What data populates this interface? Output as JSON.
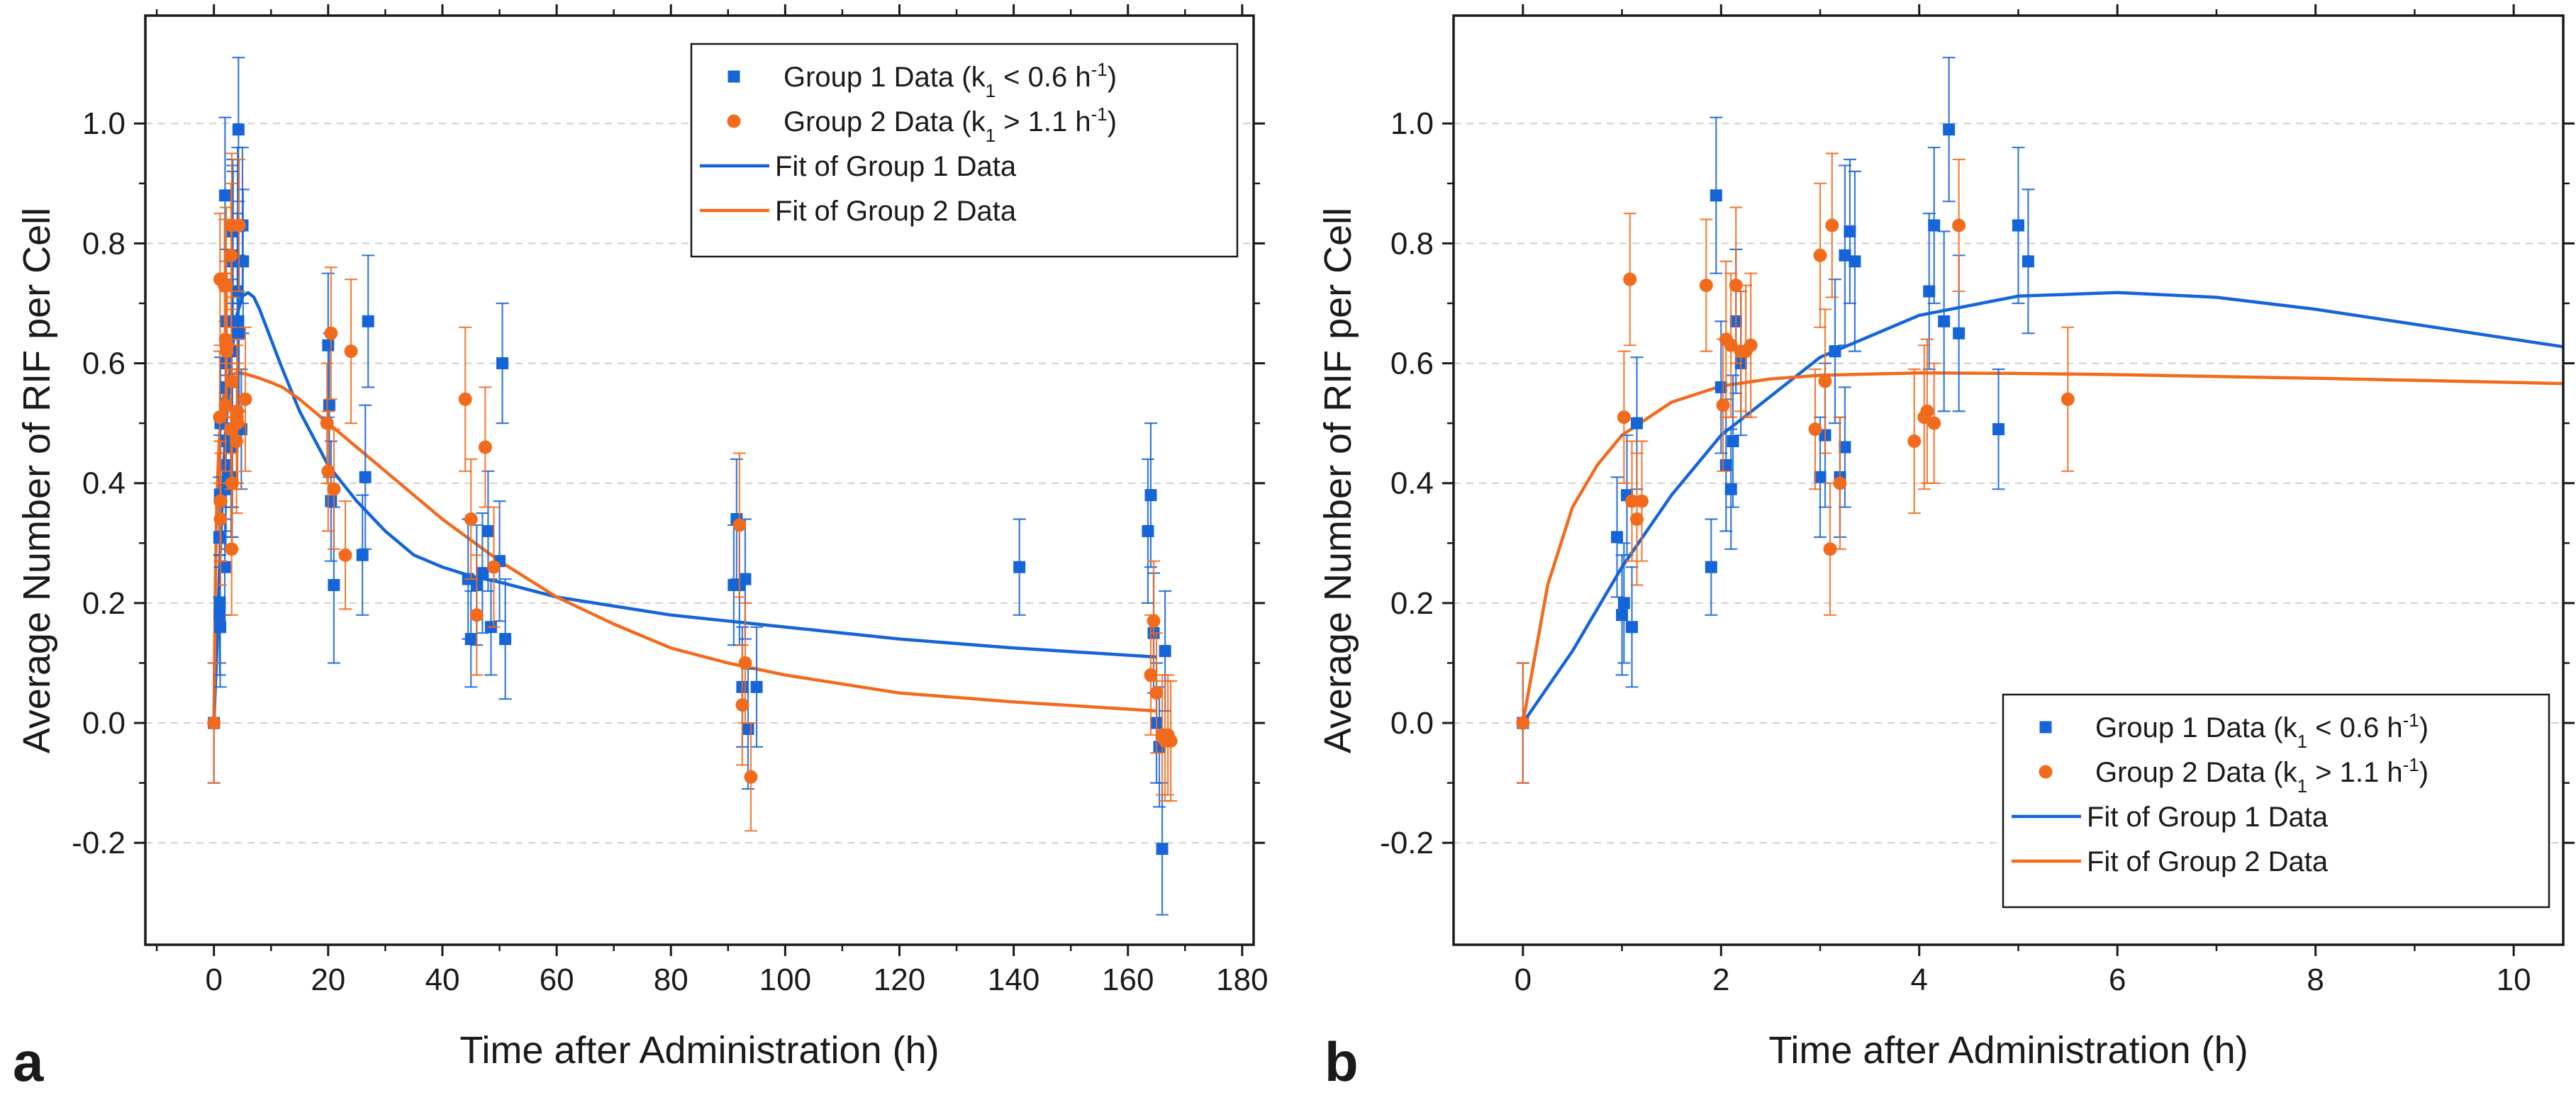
{
  "colors": {
    "group1": "#1565d8",
    "group2": "#f26b1d",
    "frame": "#1a1a1a",
    "grid": "#cfcfcf"
  },
  "chart_data": [
    {
      "type": "scatter",
      "panel_label": "a",
      "xlabel": "Time after Administration (h)",
      "ylabel": "Average Number of RIF per Cell",
      "xlim": [
        -12,
        182
      ],
      "ylim": [
        -0.37,
        1.18
      ],
      "xticks": [
        0,
        20,
        40,
        60,
        80,
        100,
        120,
        140,
        160,
        180
      ],
      "yticks": [
        -0.2,
        0.0,
        0.2,
        0.4,
        0.6,
        0.8,
        1.0
      ],
      "xtick_labels": [
        "0",
        "20",
        "40",
        "60",
        "80",
        "100",
        "120",
        "140",
        "160",
        "180"
      ],
      "ytick_labels": [
        "-0.2",
        "0.0",
        "0.2",
        "0.4",
        "0.6",
        "0.8",
        "1.0"
      ],
      "grid": "horizontal dashed",
      "legend_position": "top-right",
      "legend": [
        {
          "label": "Group 1 Data (k",
          "sub": "1",
          "rest": " < 0.6 h",
          "sup": "-1",
          "end": ")",
          "kind": "square",
          "series": "group1"
        },
        {
          "label": "Group 2 Data (k",
          "sub": "1",
          "rest": " > 1.1 h",
          "sup": "-1",
          "end": ")",
          "kind": "circle",
          "series": "group2"
        },
        {
          "label": "Fit of Group 1 Data",
          "kind": "line",
          "series": "group1"
        },
        {
          "label": "Fit of Group 2 Data",
          "kind": "line",
          "series": "group2"
        }
      ],
      "series": [
        {
          "name": "Group 1 Data (k1 < 0.6 h-1)",
          "marker": "square",
          "color_key": "group1",
          "points": [
            [
              0,
              0.0,
              0.1
            ],
            [
              0.95,
              0.31,
              0.1
            ],
            [
              1.0,
              0.18,
              0.1
            ],
            [
              1.02,
              0.2,
              0.1
            ],
            [
              1.05,
              0.38,
              0.1
            ],
            [
              1.1,
              0.16,
              0.1
            ],
            [
              1.15,
              0.5,
              0.11
            ],
            [
              1.9,
              0.26,
              0.08
            ],
            [
              1.95,
              0.88,
              0.13
            ],
            [
              2.0,
              0.56,
              0.11
            ],
            [
              2.05,
              0.43,
              0.11
            ],
            [
              2.1,
              0.39,
              0.1
            ],
            [
              2.12,
              0.47,
              0.11
            ],
            [
              2.15,
              0.67,
              0.12
            ],
            [
              2.2,
              0.6,
              0.12
            ],
            [
              3.0,
              0.41,
              0.1
            ],
            [
              3.05,
              0.48,
              0.12
            ],
            [
              3.15,
              0.62,
              0.12
            ],
            [
              3.2,
              0.41,
              0.1
            ],
            [
              3.25,
              0.46,
              0.1
            ],
            [
              3.25,
              0.78,
              0.15
            ],
            [
              3.3,
              0.82,
              0.12
            ],
            [
              3.35,
              0.77,
              0.15
            ],
            [
              4.1,
              0.72,
              0.13
            ],
            [
              4.15,
              0.83,
              0.13
            ],
            [
              4.25,
              0.67,
              0.15
            ],
            [
              4.3,
              0.99,
              0.12
            ],
            [
              4.4,
              0.65,
              0.13
            ],
            [
              4.8,
              0.49,
              0.1
            ],
            [
              5.0,
              0.83,
              0.13
            ],
            [
              5.1,
              0.77,
              0.12
            ],
            [
              20.0,
              0.63,
              0.12
            ],
            [
              20.2,
              0.53,
              0.12
            ],
            [
              20.5,
              0.37,
              0.1
            ],
            [
              21.0,
              0.23,
              0.13
            ],
            [
              26.0,
              0.28,
              0.1
            ],
            [
              26.5,
              0.41,
              0.12
            ],
            [
              27.0,
              0.67,
              0.11
            ],
            [
              44.5,
              0.24,
              0.1
            ],
            [
              45.0,
              0.14,
              0.08
            ],
            [
              46.0,
              0.23,
              0.1
            ],
            [
              47.0,
              0.25,
              0.1
            ],
            [
              48.0,
              0.32,
              0.1
            ],
            [
              48.5,
              0.16,
              0.08
            ],
            [
              50.0,
              0.27,
              0.1
            ],
            [
              50.5,
              0.6,
              0.1
            ],
            [
              51.0,
              0.14,
              0.1
            ],
            [
              91.0,
              0.23,
              0.1
            ],
            [
              91.5,
              0.34,
              0.1
            ],
            [
              92.0,
              0.23,
              0.1
            ],
            [
              92.5,
              0.06,
              0.1
            ],
            [
              93.0,
              0.24,
              0.1
            ],
            [
              93.5,
              -0.01,
              0.1
            ],
            [
              95.0,
              0.06,
              0.1
            ],
            [
              141.0,
              0.26,
              0.08
            ],
            [
              163.5,
              0.32,
              0.12
            ],
            [
              164.0,
              0.38,
              0.12
            ],
            [
              164.5,
              0.15,
              0.1
            ],
            [
              165.0,
              0.0,
              0.1
            ],
            [
              165.5,
              -0.04,
              0.1
            ],
            [
              166.0,
              -0.21,
              0.11
            ],
            [
              166.5,
              0.12,
              0.1
            ]
          ]
        },
        {
          "name": "Group 2 Data (k1 > 1.1 h-1)",
          "marker": "circle",
          "color_key": "group2",
          "points": [
            [
              0,
              0.0,
              0.1
            ],
            [
              1.02,
              0.51,
              0.11
            ],
            [
              1.08,
              0.74,
              0.11
            ],
            [
              1.1,
              0.37,
              0.1
            ],
            [
              1.15,
              0.34,
              0.11
            ],
            [
              1.2,
              0.37,
              0.1
            ],
            [
              1.85,
              0.73,
              0.11
            ],
            [
              2.02,
              0.53,
              0.11
            ],
            [
              2.05,
              0.64,
              0.13
            ],
            [
              2.1,
              0.63,
              0.12
            ],
            [
              2.15,
              0.73,
              0.13
            ],
            [
              2.2,
              0.62,
              0.1
            ],
            [
              2.25,
              0.62,
              0.11
            ],
            [
              2.3,
              0.63,
              0.12
            ],
            [
              2.95,
              0.49,
              0.1
            ],
            [
              3.0,
              0.78,
              0.12
            ],
            [
              3.05,
              0.57,
              0.12
            ],
            [
              3.1,
              0.29,
              0.11
            ],
            [
              3.12,
              0.83,
              0.12
            ],
            [
              3.2,
              0.4,
              0.11
            ],
            [
              3.95,
              0.47,
              0.12
            ],
            [
              4.05,
              0.51,
              0.12
            ],
            [
              4.08,
              0.52,
              0.12
            ],
            [
              4.15,
              0.5,
              0.1
            ],
            [
              4.4,
              0.83,
              0.11
            ],
            [
              5.5,
              0.54,
              0.12
            ],
            [
              19.8,
              0.5,
              0.1
            ],
            [
              20.0,
              0.42,
              0.1
            ],
            [
              20.5,
              0.65,
              0.11
            ],
            [
              21.0,
              0.39,
              0.1
            ],
            [
              23.0,
              0.28,
              0.09
            ],
            [
              24.0,
              0.62,
              0.12
            ],
            [
              44.0,
              0.54,
              0.12
            ],
            [
              45.0,
              0.34,
              0.1
            ],
            [
              46.0,
              0.18,
              0.1
            ],
            [
              47.5,
              0.46,
              0.1
            ],
            [
              49.0,
              0.26,
              0.1
            ],
            [
              92.0,
              0.33,
              0.12
            ],
            [
              92.5,
              0.03,
              0.1
            ],
            [
              93.0,
              0.1,
              0.1
            ],
            [
              94.0,
              -0.09,
              0.09
            ],
            [
              164.0,
              0.08,
              0.1
            ],
            [
              164.5,
              0.17,
              0.1
            ],
            [
              165.0,
              0.05,
              0.1
            ],
            [
              166.0,
              -0.02,
              0.1
            ],
            [
              166.5,
              -0.03,
              0.1
            ],
            [
              167.0,
              -0.02,
              0.1
            ],
            [
              167.5,
              -0.03,
              0.1
            ]
          ]
        }
      ],
      "fits": [
        {
          "name": "Fit of Group 1 Data",
          "color_key": "group1",
          "x": [
            0,
            0.5,
            1,
            1.5,
            2,
            3,
            4,
            5,
            6,
            7,
            8,
            10,
            12,
            15,
            20,
            25,
            30,
            35,
            40,
            45,
            50,
            60,
            70,
            80,
            90,
            100,
            120,
            140,
            165
          ],
          "y": [
            0,
            0.12,
            0.26,
            0.38,
            0.48,
            0.61,
            0.68,
            0.712,
            0.718,
            0.71,
            0.69,
            0.64,
            0.59,
            0.52,
            0.43,
            0.37,
            0.32,
            0.28,
            0.26,
            0.245,
            0.235,
            0.21,
            0.195,
            0.18,
            0.17,
            0.16,
            0.14,
            0.125,
            0.11
          ]
        },
        {
          "name": "Fit of Group 2 Data",
          "color_key": "group2",
          "x": [
            0,
            0.25,
            0.5,
            0.75,
            1,
            1.5,
            2,
            2.5,
            3,
            4,
            5,
            6,
            7,
            8,
            10,
            12,
            15,
            20,
            25,
            30,
            40,
            50,
            60,
            70,
            80,
            90,
            100,
            120,
            140,
            165
          ],
          "y": [
            0,
            0.23,
            0.36,
            0.43,
            0.48,
            0.535,
            0.562,
            0.574,
            0.58,
            0.584,
            0.583,
            0.581,
            0.578,
            0.575,
            0.568,
            0.56,
            0.54,
            0.5,
            0.46,
            0.42,
            0.34,
            0.27,
            0.21,
            0.165,
            0.125,
            0.1,
            0.08,
            0.05,
            0.035,
            0.02
          ]
        }
      ]
    },
    {
      "type": "scatter",
      "panel_label": "b",
      "xlabel": "Time after Administration (h)",
      "ylabel": "Average Number of RIF per Cell",
      "xlim": [
        -0.7,
        10.5
      ],
      "ylim": [
        -0.37,
        1.18
      ],
      "xticks": [
        0,
        2,
        4,
        6,
        8,
        10
      ],
      "yticks": [
        -0.2,
        0.0,
        0.2,
        0.4,
        0.6,
        0.8,
        1.0
      ],
      "xtick_labels": [
        "0",
        "2",
        "4",
        "6",
        "8",
        "10"
      ],
      "ytick_labels": [
        "-0.2",
        "0.0",
        "0.2",
        "0.4",
        "0.6",
        "0.8",
        "1.0"
      ],
      "grid": "horizontal dashed",
      "legend_position": "bottom-right",
      "legend": [
        {
          "label": "Group 1 Data (k",
          "sub": "1",
          "rest": " < 0.6 h",
          "sup": "-1",
          "end": ")",
          "kind": "square",
          "series": "group1"
        },
        {
          "label": "Group 2 Data (k",
          "sub": "1",
          "rest": " > 1.1 h",
          "sup": "-1",
          "end": ")",
          "kind": "circle",
          "series": "group2"
        },
        {
          "label": "Fit of Group 1 Data",
          "kind": "line",
          "series": "group1"
        },
        {
          "label": "Fit of Group 2 Data",
          "kind": "line",
          "series": "group2"
        }
      ],
      "series_ref": "panel_a_points_with_x_le_10.5",
      "fits_ref": "panel_a_fits"
    }
  ]
}
